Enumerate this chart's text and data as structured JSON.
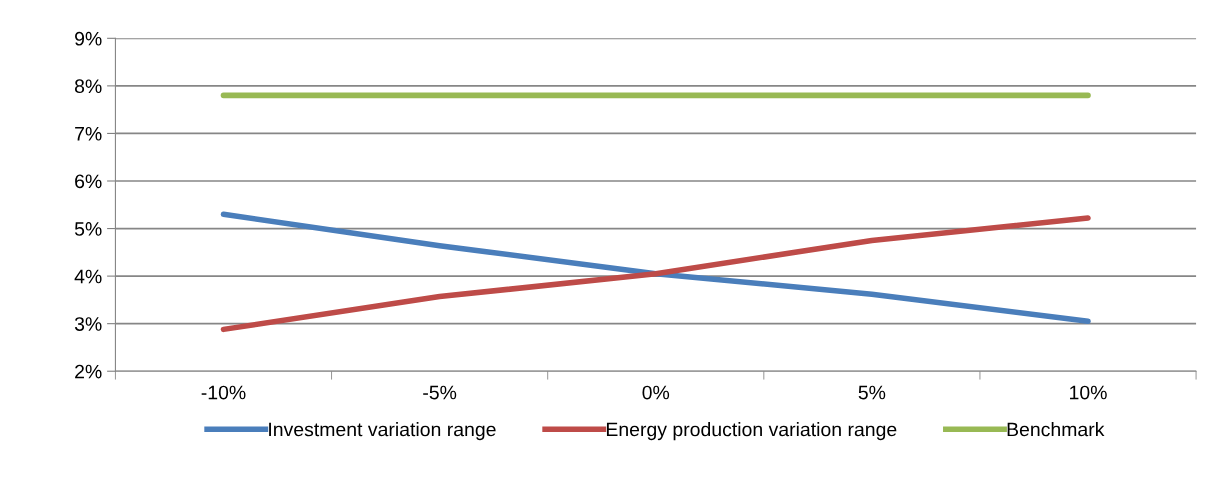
{
  "chart_data": {
    "type": "line",
    "categories": [
      "-10%",
      "-5%",
      "0%",
      "5%",
      "10%"
    ],
    "series": [
      {
        "name": "Investment variation range",
        "color": "#4a7ebb",
        "values": [
          5.3,
          4.64,
          4.05,
          3.62,
          3.05
        ]
      },
      {
        "name": "Energy production variation range",
        "color": "#be4b48",
        "values": [
          2.88,
          3.57,
          4.05,
          4.75,
          5.22
        ]
      },
      {
        "name": "Benchmark",
        "color": "#98b954",
        "values": [
          7.8,
          7.8,
          7.8,
          7.8,
          7.8
        ]
      }
    ],
    "ylim": [
      2,
      9
    ],
    "yticks": [
      {
        "value": 2,
        "label": "2%"
      },
      {
        "value": 3,
        "label": "3%"
      },
      {
        "value": 4,
        "label": "4%"
      },
      {
        "value": 5,
        "label": "5%"
      },
      {
        "value": 6,
        "label": "6%"
      },
      {
        "value": 7,
        "label": "7%"
      },
      {
        "value": 8,
        "label": "8%"
      },
      {
        "value": 9,
        "label": "9%"
      }
    ],
    "grid": "y",
    "legend": "bottom",
    "marker": "none",
    "line_style": "solid"
  }
}
